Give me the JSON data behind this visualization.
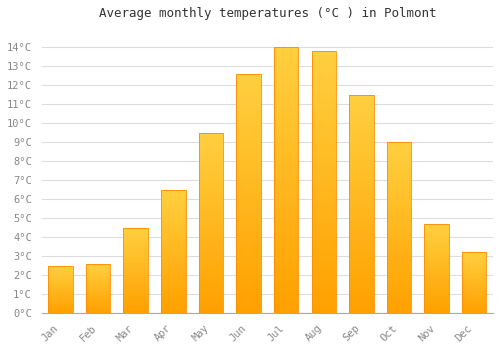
{
  "months": [
    "Jan",
    "Feb",
    "Mar",
    "Apr",
    "May",
    "Jun",
    "Jul",
    "Aug",
    "Sep",
    "Oct",
    "Nov",
    "Dec"
  ],
  "values": [
    2.5,
    2.6,
    4.5,
    6.5,
    9.5,
    12.6,
    14.0,
    13.8,
    11.5,
    9.0,
    4.7,
    3.2
  ],
  "bar_color_top": "#FFD040",
  "bar_color_bottom": "#FFA000",
  "bar_edge_color": "#FF8C00",
  "title": "Average monthly temperatures (°C ) in Polmont",
  "ylim": [
    0,
    15
  ],
  "ytick_values": [
    0,
    1,
    2,
    3,
    4,
    5,
    6,
    7,
    8,
    9,
    10,
    11,
    12,
    13,
    14
  ],
  "background_color": "#FFFFFF",
  "plot_bg_color": "#FFFFFF",
  "grid_color": "#DDDDDD",
  "title_fontsize": 9,
  "tick_fontsize": 7.5,
  "font_family": "monospace"
}
